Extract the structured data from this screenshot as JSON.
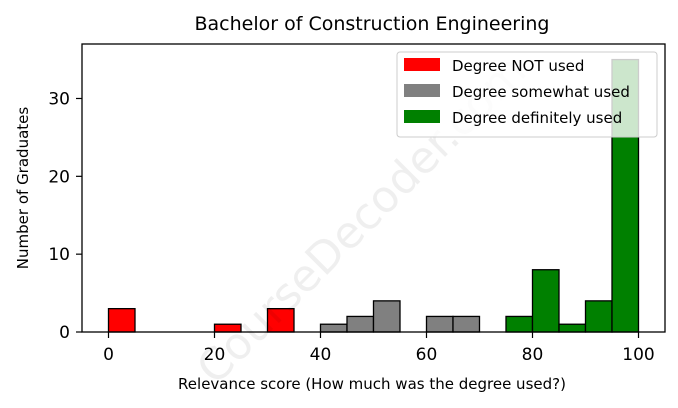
{
  "chart_data": {
    "type": "bar",
    "title": "Bachelor of Construction Engineering",
    "xlabel": "Relevance score (How much was the degree used?)",
    "ylabel": "Number of Graduates",
    "xlim": [
      -5,
      105
    ],
    "ylim": [
      0,
      37
    ],
    "x_ticks": [
      0,
      20,
      40,
      60,
      80,
      100
    ],
    "y_ticks": [
      0,
      10,
      20,
      30
    ],
    "legend_position": "top-right",
    "watermark": "CourseDecoder.com",
    "colors": {
      "Degree NOT used": "#ff0000",
      "Degree somewhat used": "#808080",
      "Degree definitely used": "#008000"
    },
    "series": [
      {
        "name": "Degree NOT used",
        "bins": [
          {
            "x0": 0,
            "x1": 5,
            "value": 3
          },
          {
            "x0": 20,
            "x1": 25,
            "value": 1
          },
          {
            "x0": 30,
            "x1": 35,
            "value": 3
          }
        ]
      },
      {
        "name": "Degree somewhat used",
        "bins": [
          {
            "x0": 40,
            "x1": 45,
            "value": 1
          },
          {
            "x0": 45,
            "x1": 50,
            "value": 2
          },
          {
            "x0": 50,
            "x1": 55,
            "value": 4
          },
          {
            "x0": 60,
            "x1": 65,
            "value": 2
          },
          {
            "x0": 65,
            "x1": 70,
            "value": 2
          }
        ]
      },
      {
        "name": "Degree definitely used",
        "bins": [
          {
            "x0": 75,
            "x1": 80,
            "value": 2
          },
          {
            "x0": 80,
            "x1": 85,
            "value": 8
          },
          {
            "x0": 85,
            "x1": 90,
            "value": 1
          },
          {
            "x0": 90,
            "x1": 95,
            "value": 4
          },
          {
            "x0": 95,
            "x1": 100,
            "value": 35
          }
        ]
      }
    ]
  }
}
